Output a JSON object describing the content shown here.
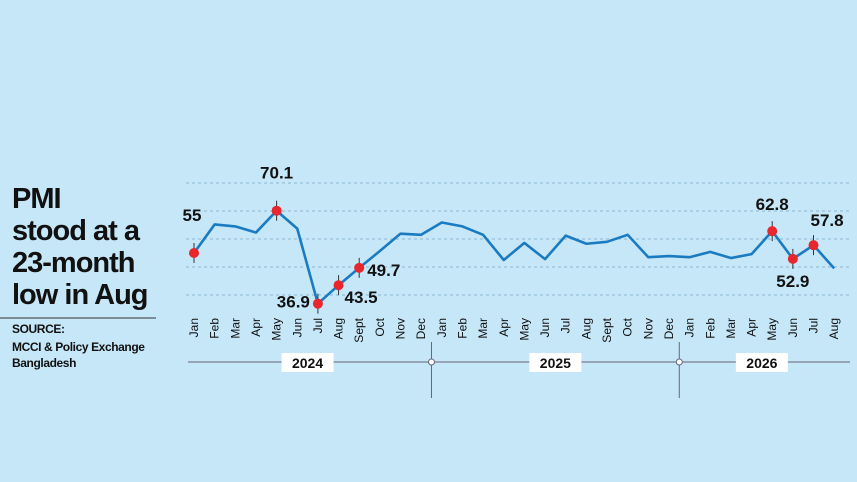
{
  "chart_data": {
    "type": "line",
    "title": [
      "PMI",
      "stood at a",
      "23-month",
      "low in Aug"
    ],
    "source_label": "SOURCE:",
    "source": [
      "MCCI & Policy Exchange",
      "Bangladesh"
    ],
    "categories": [
      "Jan",
      "Feb",
      "Mar",
      "Apr",
      "May",
      "Jun",
      "Jul",
      "Aug",
      "Sept",
      "Oct",
      "Nov",
      "Dec",
      "Jan",
      "Feb",
      "Mar",
      "Apr",
      "May",
      "Jun",
      "Jul",
      "Aug",
      "Sept",
      "Oct",
      "Nov",
      "Dec",
      "Jan",
      "Feb",
      "Mar",
      "Apr",
      "May",
      "Jun",
      "Jul",
      "Aug"
    ],
    "years": [
      "2024",
      "2025",
      "2026"
    ],
    "values": [
      55,
      65.2,
      64.5,
      62.3,
      70.1,
      63.7,
      36.9,
      43.5,
      49.7,
      55.7,
      61.9,
      61.5,
      65.9,
      64.5,
      61.5,
      52.5,
      58.6,
      52.8,
      61.2,
      58.3,
      59,
      61.5,
      53.5,
      53.9,
      53.5,
      55.4,
      53.2,
      54.6,
      62.8,
      52.9,
      57.8,
      49.5
    ],
    "highlighted": [
      0,
      4,
      6,
      7,
      8,
      28,
      29,
      30
    ],
    "color": "#1b7bc0",
    "marker_color": "#e8262d",
    "ylim": [
      35,
      85
    ],
    "yticks": [
      40,
      50,
      60,
      70,
      80
    ],
    "grid": true
  }
}
